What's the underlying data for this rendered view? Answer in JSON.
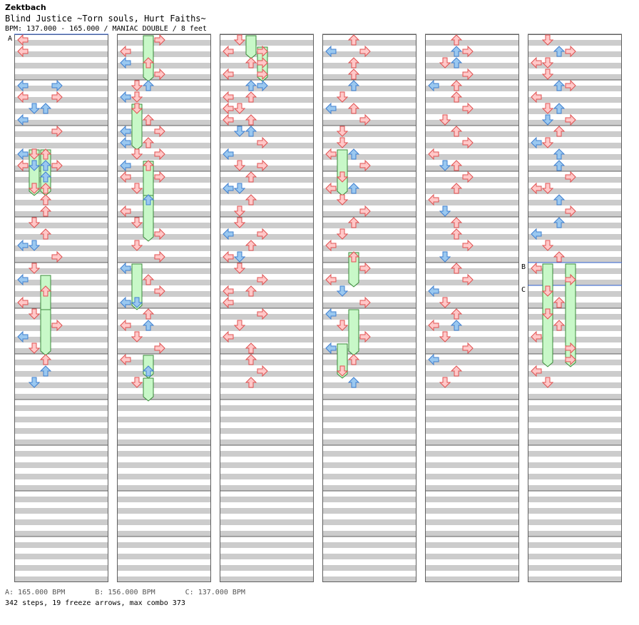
{
  "header": {
    "title": "Zektbach",
    "song": "Blind Justice ~Torn souls, Hurt Faiths~",
    "info": "BPM: 137.000 - 165.000 / MANIAC DOUBLE / 8 feet"
  },
  "footer": {
    "bpms": [
      "A: 165.000 BPM",
      "B: 156.000 BPM",
      "C: 137.000 BPM"
    ],
    "stats": "342 steps, 19 freeze arrows, max combo 373"
  },
  "markers": [
    {
      "label": "A",
      "column": 0,
      "row": 0
    },
    {
      "label": "B",
      "column": 5,
      "row": 80
    },
    {
      "label": "C",
      "column": 5,
      "row": 88
    }
  ],
  "colors": {
    "stripe": "#cccccc",
    "red_fill": "#ffc8c8",
    "red_stroke": "#e05050",
    "blue_fill": "#9ac8f0",
    "blue_stroke": "#3f7fcf",
    "freeze_fill": "#c8f8c8",
    "freeze_stroke": "#3a8a3a",
    "marker_line": "#3060d0"
  },
  "notes": [
    [
      0,
      0,
      "left",
      "red"
    ],
    [
      0,
      1,
      "left",
      "red"
    ],
    [
      0,
      4,
      "left",
      "blue"
    ],
    [
      0,
      4,
      "right",
      "blue"
    ],
    [
      0,
      5,
      "left",
      "red"
    ],
    [
      0,
      5,
      "right",
      "red"
    ],
    [
      0,
      6,
      "down",
      "blue"
    ],
    [
      0,
      6,
      "up",
      "blue"
    ],
    [
      0,
      7,
      "left",
      "blue"
    ],
    [
      0,
      8,
      "right",
      "red"
    ],
    [
      0,
      10,
      "down",
      "red"
    ],
    [
      0,
      10,
      "up",
      "red"
    ],
    [
      0,
      10,
      "left",
      "blue"
    ],
    [
      0,
      11,
      "left",
      "red"
    ],
    [
      0,
      11,
      "down",
      "blue"
    ],
    [
      0,
      11,
      "up",
      "blue"
    ],
    [
      0,
      11,
      "right",
      "red"
    ],
    [
      0,
      12,
      "up",
      "blue"
    ],
    [
      0,
      13,
      "down",
      "red"
    ],
    [
      0,
      13,
      "up",
      "red"
    ],
    [
      0,
      14,
      "up",
      "red"
    ],
    [
      0,
      15,
      "up",
      "red"
    ],
    [
      0,
      16,
      "down",
      "red"
    ],
    [
      0,
      17,
      "up",
      "red"
    ],
    [
      0,
      18,
      "left",
      "blue"
    ],
    [
      0,
      18,
      "down",
      "blue"
    ],
    [
      0,
      19,
      "right",
      "red"
    ],
    [
      0,
      20,
      "down",
      "red"
    ],
    [
      0,
      21,
      "left",
      "blue"
    ],
    [
      0,
      22,
      "up",
      "red"
    ],
    [
      0,
      23,
      "left",
      "red"
    ],
    [
      0,
      24,
      "down",
      "red"
    ],
    [
      0,
      25,
      "right",
      "red"
    ],
    [
      0,
      26,
      "left",
      "blue"
    ],
    [
      0,
      27,
      "down",
      "red"
    ],
    [
      0,
      28,
      "up",
      "red"
    ],
    [
      0,
      29,
      "up",
      "blue"
    ],
    [
      0,
      30,
      "down",
      "blue"
    ],
    [
      1,
      0,
      "right",
      "red"
    ],
    [
      1,
      1,
      "left",
      "red"
    ],
    [
      1,
      2,
      "up",
      "red"
    ],
    [
      1,
      2,
      "left",
      "blue"
    ],
    [
      1,
      3,
      "right",
      "red"
    ],
    [
      1,
      4,
      "up",
      "blue"
    ],
    [
      1,
      4,
      "down",
      "red"
    ],
    [
      1,
      5,
      "down",
      "red"
    ],
    [
      1,
      5,
      "left",
      "blue"
    ],
    [
      1,
      6,
      "down",
      "red"
    ],
    [
      1,
      7,
      "up",
      "red"
    ],
    [
      1,
      8,
      "left",
      "blue"
    ],
    [
      1,
      8,
      "right",
      "red"
    ],
    [
      1,
      9,
      "left",
      "blue"
    ],
    [
      1,
      9,
      "up",
      "red"
    ],
    [
      1,
      10,
      "down",
      "red"
    ],
    [
      1,
      10,
      "right",
      "red"
    ],
    [
      1,
      11,
      "left",
      "blue"
    ],
    [
      1,
      11,
      "up",
      "red"
    ],
    [
      1,
      12,
      "left",
      "red"
    ],
    [
      1,
      12,
      "right",
      "red"
    ],
    [
      1,
      13,
      "down",
      "red"
    ],
    [
      1,
      14,
      "up",
      "blue"
    ],
    [
      1,
      15,
      "left",
      "red"
    ],
    [
      1,
      16,
      "down",
      "red"
    ],
    [
      1,
      17,
      "right",
      "red"
    ],
    [
      1,
      18,
      "down",
      "red"
    ],
    [
      1,
      19,
      "right",
      "red"
    ],
    [
      1,
      20,
      "left",
      "blue"
    ],
    [
      1,
      21,
      "up",
      "red"
    ],
    [
      1,
      22,
      "right",
      "red"
    ],
    [
      1,
      23,
      "left",
      "blue"
    ],
    [
      1,
      23,
      "down",
      "blue"
    ],
    [
      1,
      24,
      "up",
      "red"
    ],
    [
      1,
      25,
      "left",
      "red"
    ],
    [
      1,
      25,
      "up",
      "blue"
    ],
    [
      1,
      26,
      "down",
      "red"
    ],
    [
      1,
      27,
      "right",
      "red"
    ],
    [
      1,
      28,
      "left",
      "red"
    ],
    [
      1,
      29,
      "up",
      "blue"
    ],
    [
      1,
      30,
      "down",
      "red"
    ],
    [
      2,
      0,
      "down",
      "red"
    ],
    [
      2,
      1,
      "left",
      "red"
    ],
    [
      2,
      1,
      "right",
      "red"
    ],
    [
      2,
      2,
      "up",
      "red"
    ],
    [
      2,
      2,
      "right",
      "red"
    ],
    [
      2,
      3,
      "left",
      "red"
    ],
    [
      2,
      3,
      "right",
      "red"
    ],
    [
      2,
      4,
      "up",
      "blue"
    ],
    [
      2,
      4,
      "right",
      "blue"
    ],
    [
      2,
      5,
      "left",
      "red"
    ],
    [
      2,
      5,
      "up",
      "red"
    ],
    [
      2,
      6,
      "down",
      "red"
    ],
    [
      2,
      6,
      "left",
      "red"
    ],
    [
      2,
      7,
      "up",
      "red"
    ],
    [
      2,
      7,
      "left",
      "red"
    ],
    [
      2,
      8,
      "down",
      "blue"
    ],
    [
      2,
      8,
      "up",
      "blue"
    ],
    [
      2,
      9,
      "right",
      "red"
    ],
    [
      2,
      10,
      "left",
      "blue"
    ],
    [
      2,
      11,
      "down",
      "red"
    ],
    [
      2,
      11,
      "right",
      "red"
    ],
    [
      2,
      12,
      "up",
      "red"
    ],
    [
      2,
      13,
      "left",
      "blue"
    ],
    [
      2,
      13,
      "down",
      "blue"
    ],
    [
      2,
      14,
      "up",
      "red"
    ],
    [
      2,
      15,
      "down",
      "red"
    ],
    [
      2,
      16,
      "down",
      "red"
    ],
    [
      2,
      17,
      "left",
      "blue"
    ],
    [
      2,
      17,
      "right",
      "red"
    ],
    [
      2,
      18,
      "up",
      "red"
    ],
    [
      2,
      19,
      "left",
      "red"
    ],
    [
      2,
      19,
      "down",
      "blue"
    ],
    [
      2,
      20,
      "down",
      "red"
    ],
    [
      2,
      21,
      "right",
      "red"
    ],
    [
      2,
      22,
      "left",
      "red"
    ],
    [
      2,
      22,
      "up",
      "red"
    ],
    [
      2,
      23,
      "left",
      "red"
    ],
    [
      2,
      24,
      "right",
      "red"
    ],
    [
      2,
      25,
      "down",
      "red"
    ],
    [
      2,
      26,
      "left",
      "red"
    ],
    [
      2,
      27,
      "up",
      "red"
    ],
    [
      2,
      28,
      "up",
      "red"
    ],
    [
      2,
      29,
      "right",
      "red"
    ],
    [
      2,
      30,
      "up",
      "red"
    ],
    [
      3,
      0,
      "up",
      "red"
    ],
    [
      3,
      1,
      "right",
      "red"
    ],
    [
      3,
      1,
      "left",
      "blue"
    ],
    [
      3,
      2,
      "up",
      "red"
    ],
    [
      3,
      3,
      "up",
      "red"
    ],
    [
      3,
      4,
      "up",
      "blue"
    ],
    [
      3,
      5,
      "down",
      "red"
    ],
    [
      3,
      6,
      "up",
      "red"
    ],
    [
      3,
      6,
      "left",
      "blue"
    ],
    [
      3,
      7,
      "right",
      "red"
    ],
    [
      3,
      8,
      "down",
      "red"
    ],
    [
      3,
      9,
      "down",
      "red"
    ],
    [
      3,
      10,
      "left",
      "red"
    ],
    [
      3,
      10,
      "up",
      "blue"
    ],
    [
      3,
      11,
      "right",
      "red"
    ],
    [
      3,
      12,
      "down",
      "red"
    ],
    [
      3,
      13,
      "left",
      "red"
    ],
    [
      3,
      13,
      "up",
      "blue"
    ],
    [
      3,
      14,
      "down",
      "red"
    ],
    [
      3,
      15,
      "right",
      "red"
    ],
    [
      3,
      16,
      "up",
      "red"
    ],
    [
      3,
      17,
      "down",
      "red"
    ],
    [
      3,
      18,
      "left",
      "red"
    ],
    [
      3,
      19,
      "up",
      "red"
    ],
    [
      3,
      20,
      "right",
      "red"
    ],
    [
      3,
      21,
      "left",
      "red"
    ],
    [
      3,
      22,
      "down",
      "blue"
    ],
    [
      3,
      23,
      "right",
      "red"
    ],
    [
      3,
      24,
      "left",
      "blue"
    ],
    [
      3,
      25,
      "down",
      "red"
    ],
    [
      3,
      26,
      "right",
      "red"
    ],
    [
      3,
      27,
      "left",
      "blue"
    ],
    [
      3,
      28,
      "up",
      "red"
    ],
    [
      3,
      29,
      "down",
      "red"
    ],
    [
      3,
      30,
      "up",
      "blue"
    ],
    [
      4,
      0,
      "up",
      "red"
    ],
    [
      4,
      1,
      "up",
      "blue"
    ],
    [
      4,
      1,
      "right",
      "red"
    ],
    [
      4,
      2,
      "down",
      "red"
    ],
    [
      4,
      2,
      "up",
      "blue"
    ],
    [
      4,
      3,
      "right",
      "red"
    ],
    [
      4,
      4,
      "left",
      "blue"
    ],
    [
      4,
      4,
      "up",
      "red"
    ],
    [
      4,
      5,
      "up",
      "red"
    ],
    [
      4,
      6,
      "right",
      "red"
    ],
    [
      4,
      7,
      "down",
      "red"
    ],
    [
      4,
      8,
      "up",
      "red"
    ],
    [
      4,
      9,
      "right",
      "red"
    ],
    [
      4,
      10,
      "left",
      "red"
    ],
    [
      4,
      11,
      "up",
      "red"
    ],
    [
      4,
      11,
      "down",
      "blue"
    ],
    [
      4,
      12,
      "right",
      "red"
    ],
    [
      4,
      13,
      "up",
      "red"
    ],
    [
      4,
      14,
      "left",
      "red"
    ],
    [
      4,
      15,
      "down",
      "blue"
    ],
    [
      4,
      16,
      "up",
      "red"
    ],
    [
      4,
      17,
      "up",
      "red"
    ],
    [
      4,
      18,
      "right",
      "red"
    ],
    [
      4,
      19,
      "down",
      "blue"
    ],
    [
      4,
      20,
      "up",
      "red"
    ],
    [
      4,
      21,
      "right",
      "red"
    ],
    [
      4,
      22,
      "left",
      "blue"
    ],
    [
      4,
      23,
      "down",
      "red"
    ],
    [
      4,
      24,
      "up",
      "red"
    ],
    [
      4,
      25,
      "left",
      "red"
    ],
    [
      4,
      25,
      "up",
      "blue"
    ],
    [
      4,
      26,
      "down",
      "red"
    ],
    [
      4,
      27,
      "right",
      "red"
    ],
    [
      4,
      28,
      "left",
      "blue"
    ],
    [
      4,
      29,
      "up",
      "red"
    ],
    [
      4,
      30,
      "down",
      "red"
    ],
    [
      5,
      0,
      "down",
      "red"
    ],
    [
      5,
      1,
      "right",
      "red"
    ],
    [
      5,
      1,
      "up",
      "blue"
    ],
    [
      5,
      2,
      "left",
      "red"
    ],
    [
      5,
      2,
      "down",
      "red"
    ],
    [
      5,
      3,
      "down",
      "red"
    ],
    [
      5,
      4,
      "right",
      "red"
    ],
    [
      5,
      4,
      "up",
      "blue"
    ],
    [
      5,
      5,
      "left",
      "red"
    ],
    [
      5,
      6,
      "down",
      "red"
    ],
    [
      5,
      6,
      "up",
      "blue"
    ],
    [
      5,
      7,
      "right",
      "red"
    ],
    [
      5,
      7,
      "down",
      "blue"
    ],
    [
      5,
      8,
      "up",
      "red"
    ],
    [
      5,
      9,
      "left",
      "blue"
    ],
    [
      5,
      9,
      "down",
      "red"
    ],
    [
      5,
      10,
      "up",
      "blue"
    ],
    [
      5,
      11,
      "up",
      "blue"
    ],
    [
      5,
      12,
      "right",
      "red"
    ],
    [
      5,
      13,
      "left",
      "red"
    ],
    [
      5,
      13,
      "down",
      "red"
    ],
    [
      5,
      14,
      "up",
      "blue"
    ],
    [
      5,
      15,
      "right",
      "red"
    ],
    [
      5,
      16,
      "up",
      "blue"
    ],
    [
      5,
      17,
      "left",
      "blue"
    ],
    [
      5,
      18,
      "down",
      "red"
    ],
    [
      5,
      19,
      "up",
      "red"
    ],
    [
      5,
      20,
      "left",
      "red"
    ],
    [
      5,
      21,
      "right",
      "red"
    ],
    [
      5,
      22,
      "down",
      "red"
    ],
    [
      5,
      23,
      "up",
      "red"
    ],
    [
      5,
      24,
      "down",
      "red"
    ],
    [
      5,
      25,
      "up",
      "red"
    ],
    [
      5,
      26,
      "left",
      "red"
    ],
    [
      5,
      27,
      "right",
      "red"
    ],
    [
      5,
      28,
      "right",
      "red"
    ],
    [
      5,
      29,
      "left",
      "red"
    ],
    [
      5,
      30,
      "down",
      "red"
    ]
  ],
  "freezes": [
    [
      0,
      10,
      "down",
      4
    ],
    [
      0,
      10,
      "up",
      4
    ],
    [
      0,
      21,
      "up",
      4
    ],
    [
      0,
      24,
      "up",
      4
    ],
    [
      1,
      0,
      "up",
      4
    ],
    [
      1,
      6,
      "down",
      4
    ],
    [
      1,
      11,
      "up",
      4
    ],
    [
      1,
      14,
      "up",
      4
    ],
    [
      1,
      20,
      "down",
      4
    ],
    [
      1,
      28,
      "up",
      2
    ],
    [
      1,
      30,
      "up",
      2
    ],
    [
      2,
      0,
      "up",
      2
    ],
    [
      2,
      1,
      "right",
      3
    ],
    [
      3,
      10,
      "down",
      4
    ],
    [
      3,
      19,
      "up",
      3
    ],
    [
      3,
      24,
      "up",
      4
    ],
    [
      3,
      27,
      "down",
      3
    ],
    [
      5,
      20,
      "down",
      9
    ],
    [
      5,
      20,
      "right",
      9
    ]
  ]
}
